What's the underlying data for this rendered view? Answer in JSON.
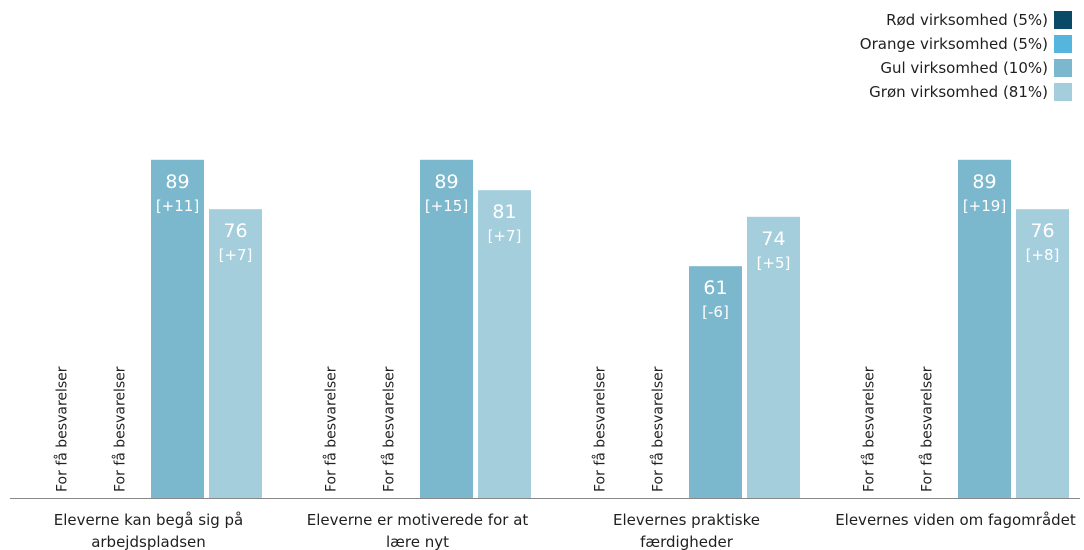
{
  "chart_data": {
    "type": "bar",
    "categories": [
      [
        "Eleverne kan begå sig på",
        "arbejdspladsen"
      ],
      [
        "Eleverne er motiverede for at",
        "lære nyt"
      ],
      [
        "Elevernes praktiske",
        "færdigheder"
      ],
      [
        "Elevernes viden om fagområdet"
      ]
    ],
    "series": [
      {
        "name": "Rød virksomhed (5%)",
        "color": "#0b4a66",
        "values": [
          null,
          null,
          null,
          null
        ],
        "changes": [
          null,
          null,
          null,
          null
        ]
      },
      {
        "name": "Orange virksomhed (5%)",
        "color": "#56b5dc",
        "values": [
          null,
          null,
          null,
          null
        ],
        "changes": [
          null,
          null,
          null,
          null
        ]
      },
      {
        "name": "Gul virksomhed (10%)",
        "color": "#7bb7cd",
        "values": [
          89,
          89,
          61,
          89
        ],
        "changes": [
          "[+11]",
          "[+15]",
          "[-6]",
          "[+19]"
        ]
      },
      {
        "name": "Grøn virksomhed (81%)",
        "color": "#a5cedd",
        "values": [
          76,
          81,
          74,
          76
        ],
        "changes": [
          "[+7]",
          "[+7]",
          "[+5]",
          "[+8]"
        ]
      }
    ],
    "missing_label": "For få besvarelser",
    "ylim": [
      0,
      100
    ],
    "legend_position": "top-right",
    "grid": false
  }
}
